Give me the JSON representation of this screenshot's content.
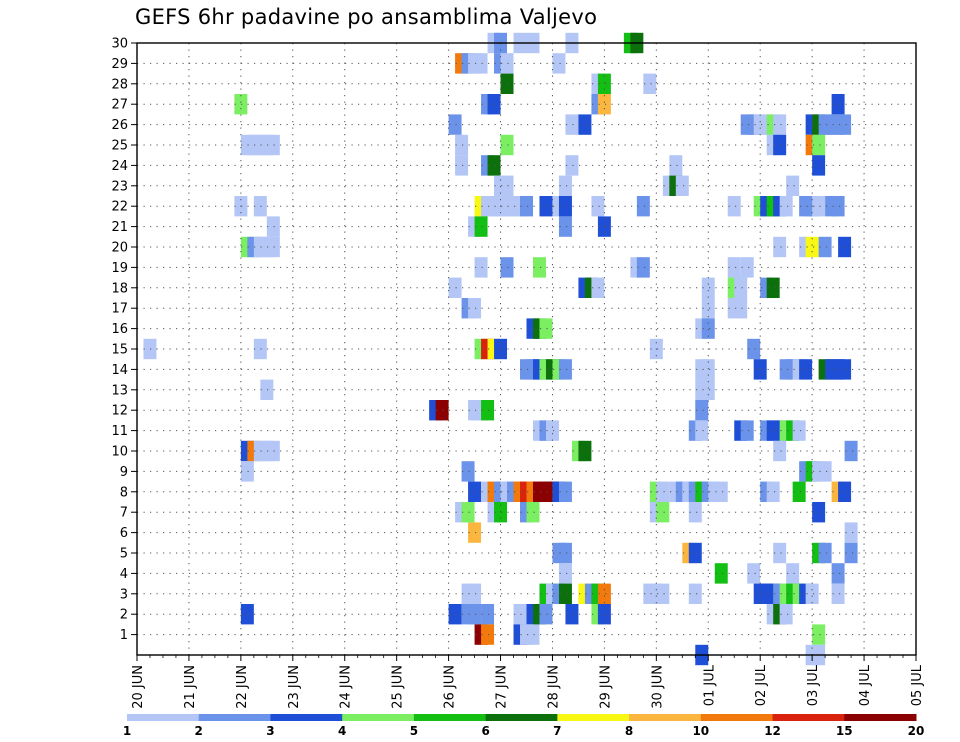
{
  "title": "GEFS 6hr padavine po ansamblima Valjevo",
  "chart_data": {
    "type": "heatmap",
    "title": "GEFS 6hr padavine po ansamblima Valjevo",
    "x_start": "20 JUN",
    "x_tick_labels": [
      "20 JUN",
      "21 JUN",
      "22 JUN",
      "23 JUN",
      "24 JUN",
      "25 JUN",
      "26 JUN",
      "27 JUN",
      "28 JUN",
      "29 JUN",
      "30 JUN",
      "01 JUL",
      "02 JUL",
      "03 JUL",
      "04 JUL",
      "05 JUL"
    ],
    "y_tick_labels": [
      "1",
      "2",
      "3",
      "4",
      "5",
      "6",
      "7",
      "8",
      "9",
      "10",
      "11",
      "12",
      "13",
      "14",
      "15",
      "16",
      "17",
      "18",
      "19",
      "20",
      "21",
      "22",
      "23",
      "24",
      "25",
      "26",
      "27",
      "28",
      "29",
      "30"
    ],
    "ylim": [
      0,
      30
    ],
    "grid": true,
    "legend": {
      "placement": "bottom",
      "tick_labels": [
        "1",
        "2",
        "3",
        "4",
        "5",
        "6",
        "7",
        "8",
        "10",
        "12",
        "15",
        "20"
      ],
      "colors": [
        "#b4c6f5",
        "#6b93e9",
        "#1f4fd6",
        "#7bee62",
        "#12bf12",
        "#0c700c",
        "#f8f814",
        "#fbb63f",
        "#f27a0d",
        "#d9230e",
        "#8b0000"
      ]
    },
    "value_encoding": "Each cell value is a legend class: 1 = 1-2, 2 = 2-3, 3 = 3-4, 4 = 4-5, 5 = 5-6, 6 = 6-7, 7 = 7-8, 8 = 8-10, 9 = 10-12, 10 = 12-15, 11 = 15-20 (x in hours from 20 JUN 00 UTC, y = ensemble member)",
    "cells": [
      [
        330,
        30,
        1
      ],
      [
        336,
        30,
        2
      ],
      [
        354,
        30,
        1
      ],
      [
        366,
        30,
        1
      ],
      [
        402,
        30,
        1
      ],
      [
        456,
        30,
        5
      ],
      [
        462,
        30,
        6
      ],
      [
        300,
        29,
        9
      ],
      [
        306,
        29,
        2
      ],
      [
        312,
        29,
        1
      ],
      [
        318,
        29,
        1
      ],
      [
        336,
        29,
        2
      ],
      [
        342,
        29,
        1
      ],
      [
        390,
        29,
        1
      ],
      [
        342,
        28,
        6
      ],
      [
        426,
        28,
        1
      ],
      [
        432,
        28,
        5
      ],
      [
        474,
        28,
        1
      ],
      [
        96,
        27,
        4
      ],
      [
        324,
        27,
        2
      ],
      [
        330,
        27,
        3
      ],
      [
        426,
        27,
        2
      ],
      [
        432,
        27,
        8
      ],
      [
        648,
        27,
        3
      ],
      [
        294,
        26,
        2
      ],
      [
        402,
        26,
        1
      ],
      [
        414,
        26,
        3
      ],
      [
        564,
        26,
        2
      ],
      [
        570,
        26,
        2
      ],
      [
        576,
        26,
        1
      ],
      [
        582,
        26,
        1
      ],
      [
        588,
        26,
        4
      ],
      [
        594,
        26,
        1
      ],
      [
        624,
        26,
        3
      ],
      [
        630,
        26,
        6
      ],
      [
        636,
        26,
        2
      ],
      [
        642,
        26,
        2
      ],
      [
        648,
        26,
        2
      ],
      [
        654,
        26,
        2
      ],
      [
        102,
        25,
        1
      ],
      [
        108,
        25,
        1
      ],
      [
        114,
        25,
        1
      ],
      [
        120,
        25,
        1
      ],
      [
        126,
        25,
        1
      ],
      [
        300,
        25,
        1
      ],
      [
        342,
        25,
        4
      ],
      [
        588,
        25,
        1
      ],
      [
        594,
        25,
        3
      ],
      [
        624,
        25,
        9
      ],
      [
        630,
        25,
        4
      ],
      [
        300,
        24,
        1
      ],
      [
        324,
        24,
        2
      ],
      [
        330,
        24,
        6
      ],
      [
        402,
        24,
        1
      ],
      [
        498,
        24,
        1
      ],
      [
        630,
        24,
        3
      ],
      [
        336,
        23,
        1
      ],
      [
        342,
        23,
        1
      ],
      [
        396,
        23,
        1
      ],
      [
        492,
        23,
        1
      ],
      [
        498,
        23,
        6
      ],
      [
        504,
        23,
        1
      ],
      [
        606,
        23,
        1
      ],
      [
        96,
        22,
        1
      ],
      [
        114,
        22,
        1
      ],
      [
        318,
        22,
        7
      ],
      [
        324,
        22,
        1
      ],
      [
        330,
        22,
        1
      ],
      [
        336,
        22,
        1
      ],
      [
        342,
        22,
        1
      ],
      [
        348,
        22,
        1
      ],
      [
        354,
        22,
        1
      ],
      [
        360,
        22,
        2
      ],
      [
        378,
        22,
        3
      ],
      [
        390,
        22,
        1
      ],
      [
        396,
        22,
        3
      ],
      [
        426,
        22,
        1
      ],
      [
        468,
        22,
        2
      ],
      [
        552,
        22,
        1
      ],
      [
        576,
        22,
        4
      ],
      [
        582,
        22,
        3
      ],
      [
        588,
        22,
        5
      ],
      [
        594,
        22,
        3
      ],
      [
        600,
        22,
        1
      ],
      [
        618,
        22,
        2
      ],
      [
        624,
        22,
        2
      ],
      [
        630,
        22,
        1
      ],
      [
        642,
        22,
        2
      ],
      [
        648,
        22,
        2
      ],
      [
        126,
        21,
        1
      ],
      [
        312,
        21,
        1
      ],
      [
        318,
        21,
        5
      ],
      [
        396,
        21,
        2
      ],
      [
        432,
        21,
        3
      ],
      [
        102,
        20,
        4
      ],
      [
        108,
        20,
        2
      ],
      [
        114,
        20,
        1
      ],
      [
        120,
        20,
        1
      ],
      [
        126,
        20,
        1
      ],
      [
        594,
        20,
        1
      ],
      [
        618,
        20,
        1
      ],
      [
        624,
        20,
        7
      ],
      [
        636,
        20,
        2
      ],
      [
        654,
        20,
        3
      ],
      [
        318,
        19,
        1
      ],
      [
        342,
        19,
        2
      ],
      [
        372,
        19,
        4
      ],
      [
        462,
        19,
        1
      ],
      [
        468,
        19,
        2
      ],
      [
        552,
        19,
        1
      ],
      [
        564,
        19,
        1
      ],
      [
        294,
        18,
        1
      ],
      [
        414,
        18,
        3
      ],
      [
        420,
        18,
        6
      ],
      [
        426,
        18,
        1
      ],
      [
        528,
        18,
        1
      ],
      [
        552,
        18,
        4
      ],
      [
        558,
        18,
        1
      ],
      [
        582,
        18,
        2
      ],
      [
        588,
        18,
        6
      ],
      [
        306,
        17,
        2
      ],
      [
        312,
        17,
        1
      ],
      [
        528,
        17,
        1
      ],
      [
        552,
        17,
        1
      ],
      [
        558,
        17,
        1
      ],
      [
        366,
        16,
        3
      ],
      [
        372,
        16,
        6
      ],
      [
        378,
        16,
        4
      ],
      [
        522,
        16,
        1
      ],
      [
        528,
        16,
        2
      ],
      [
        12,
        15,
        1
      ],
      [
        114,
        15,
        1
      ],
      [
        318,
        15,
        4
      ],
      [
        324,
        15,
        10
      ],
      [
        330,
        15,
        7
      ],
      [
        336,
        15,
        3
      ],
      [
        480,
        15,
        1
      ],
      [
        570,
        15,
        2
      ],
      [
        360,
        14,
        2
      ],
      [
        366,
        14,
        2
      ],
      [
        372,
        14,
        3
      ],
      [
        378,
        14,
        4
      ],
      [
        384,
        14,
        6
      ],
      [
        390,
        14,
        4
      ],
      [
        396,
        14,
        2
      ],
      [
        522,
        14,
        1
      ],
      [
        528,
        14,
        1
      ],
      [
        576,
        14,
        3
      ],
      [
        600,
        14,
        2
      ],
      [
        606,
        14,
        2
      ],
      [
        612,
        14,
        1
      ],
      [
        618,
        14,
        3
      ],
      [
        636,
        14,
        6
      ],
      [
        642,
        14,
        3
      ],
      [
        648,
        14,
        3
      ],
      [
        654,
        14,
        3
      ],
      [
        120,
        13,
        1
      ],
      [
        522,
        13,
        1
      ],
      [
        528,
        13,
        1
      ],
      [
        276,
        12,
        3
      ],
      [
        282,
        12,
        11
      ],
      [
        312,
        12,
        1
      ],
      [
        318,
        12,
        1
      ],
      [
        324,
        12,
        5
      ],
      [
        522,
        12,
        2
      ],
      [
        372,
        11,
        1
      ],
      [
        378,
        11,
        2
      ],
      [
        384,
        11,
        1
      ],
      [
        516,
        11,
        2
      ],
      [
        522,
        11,
        1
      ],
      [
        558,
        11,
        3
      ],
      [
        564,
        11,
        2
      ],
      [
        582,
        11,
        2
      ],
      [
        588,
        11,
        3
      ],
      [
        594,
        11,
        3
      ],
      [
        600,
        11,
        4
      ],
      [
        606,
        11,
        5
      ],
      [
        612,
        11,
        1
      ],
      [
        102,
        10,
        3
      ],
      [
        108,
        10,
        9
      ],
      [
        114,
        10,
        1
      ],
      [
        120,
        10,
        1
      ],
      [
        126,
        10,
        1
      ],
      [
        408,
        10,
        4
      ],
      [
        414,
        10,
        6
      ],
      [
        594,
        10,
        1
      ],
      [
        660,
        10,
        2
      ],
      [
        102,
        9,
        1
      ],
      [
        306,
        9,
        2
      ],
      [
        618,
        9,
        2
      ],
      [
        624,
        9,
        5
      ],
      [
        630,
        9,
        1
      ],
      [
        636,
        9,
        1
      ],
      [
        312,
        8,
        3
      ],
      [
        324,
        8,
        1
      ],
      [
        330,
        8,
        9
      ],
      [
        336,
        8,
        2
      ],
      [
        342,
        8,
        1
      ],
      [
        348,
        8,
        2
      ],
      [
        354,
        8,
        9
      ],
      [
        360,
        8,
        10
      ],
      [
        366,
        8,
        9
      ],
      [
        372,
        8,
        11
      ],
      [
        378,
        8,
        11
      ],
      [
        384,
        8,
        11
      ],
      [
        390,
        8,
        3
      ],
      [
        396,
        8,
        2
      ],
      [
        480,
        8,
        4
      ],
      [
        486,
        8,
        1
      ],
      [
        498,
        8,
        1
      ],
      [
        504,
        8,
        2
      ],
      [
        510,
        8,
        1
      ],
      [
        516,
        8,
        2
      ],
      [
        522,
        8,
        5
      ],
      [
        528,
        8,
        2
      ],
      [
        534,
        8,
        1
      ],
      [
        540,
        8,
        1
      ],
      [
        582,
        8,
        2
      ],
      [
        588,
        8,
        1
      ],
      [
        612,
        8,
        5
      ],
      [
        648,
        8,
        8
      ],
      [
        654,
        8,
        3
      ],
      [
        300,
        7,
        1
      ],
      [
        306,
        7,
        4
      ],
      [
        330,
        7,
        1
      ],
      [
        336,
        7,
        5
      ],
      [
        360,
        7,
        2
      ],
      [
        366,
        7,
        4
      ],
      [
        480,
        7,
        1
      ],
      [
        486,
        7,
        4
      ],
      [
        516,
        7,
        1
      ],
      [
        630,
        7,
        3
      ],
      [
        312,
        6,
        8
      ],
      [
        660,
        6,
        1
      ],
      [
        390,
        5,
        2
      ],
      [
        396,
        5,
        2
      ],
      [
        510,
        5,
        8
      ],
      [
        516,
        5,
        3
      ],
      [
        594,
        5,
        1
      ],
      [
        630,
        5,
        5
      ],
      [
        636,
        5,
        2
      ],
      [
        660,
        5,
        2
      ],
      [
        396,
        4,
        1
      ],
      [
        540,
        4,
        5
      ],
      [
        570,
        4,
        1
      ],
      [
        606,
        4,
        1
      ],
      [
        648,
        4,
        2
      ],
      [
        306,
        3,
        1
      ],
      [
        312,
        3,
        1
      ],
      [
        378,
        3,
        5
      ],
      [
        384,
        3,
        1
      ],
      [
        390,
        3,
        2
      ],
      [
        396,
        3,
        6
      ],
      [
        414,
        3,
        7
      ],
      [
        420,
        3,
        2
      ],
      [
        426,
        3,
        5
      ],
      [
        432,
        3,
        9
      ],
      [
        474,
        3,
        1
      ],
      [
        480,
        3,
        1
      ],
      [
        486,
        3,
        1
      ],
      [
        516,
        3,
        1
      ],
      [
        576,
        3,
        3
      ],
      [
        582,
        3,
        3
      ],
      [
        588,
        3,
        3
      ],
      [
        594,
        3,
        2
      ],
      [
        600,
        3,
        4
      ],
      [
        606,
        3,
        5
      ],
      [
        612,
        3,
        4
      ],
      [
        618,
        3,
        3
      ],
      [
        624,
        3,
        1
      ],
      [
        648,
        3,
        1
      ],
      [
        102,
        2,
        3
      ],
      [
        294,
        2,
        3
      ],
      [
        306,
        2,
        2
      ],
      [
        312,
        2,
        2
      ],
      [
        324,
        2,
        2
      ],
      [
        354,
        2,
        1
      ],
      [
        366,
        2,
        3
      ],
      [
        372,
        2,
        6
      ],
      [
        378,
        2,
        2
      ],
      [
        402,
        2,
        3
      ],
      [
        426,
        2,
        4
      ],
      [
        432,
        2,
        3
      ],
      [
        588,
        2,
        1
      ],
      [
        594,
        2,
        6
      ],
      [
        600,
        2,
        1
      ],
      [
        318,
        1,
        11
      ],
      [
        324,
        1,
        9
      ],
      [
        354,
        1,
        3
      ],
      [
        360,
        1,
        1
      ],
      [
        366,
        1,
        1
      ],
      [
        630,
        1,
        4
      ],
      [
        624,
        0,
        1
      ],
      [
        630,
        0,
        1
      ],
      [
        522,
        0,
        3
      ]
    ]
  }
}
